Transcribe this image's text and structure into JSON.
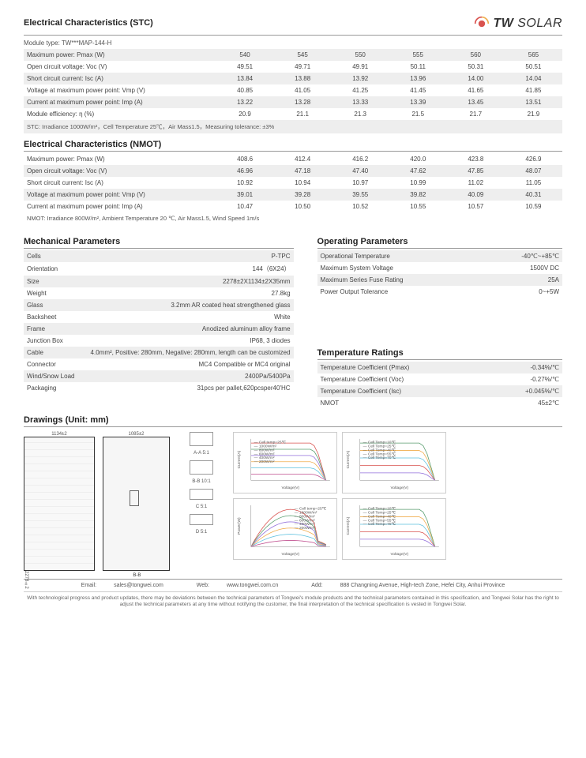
{
  "brand": {
    "tw": "TW",
    "solar": " SOLAR"
  },
  "stc": {
    "title": "Electrical Characteristics (STC)",
    "module_type_label": "Module type: TW***MAP-144-H",
    "rows": [
      {
        "label": "Maximum power: Pmax (W)",
        "vals": [
          "540",
          "545",
          "550",
          "555",
          "560",
          "565"
        ],
        "alt": true
      },
      {
        "label": "Open circuit voltage: Voc (V)",
        "vals": [
          "49.51",
          "49.71",
          "49.91",
          "50.11",
          "50.31",
          "50.51"
        ],
        "alt": false
      },
      {
        "label": "Short circuit current: Isc (A)",
        "vals": [
          "13.84",
          "13.88",
          "13.92",
          "13.96",
          "14.00",
          "14.04"
        ],
        "alt": true
      },
      {
        "label": "Voltage at maximum power point: Vmp (V)",
        "vals": [
          "40.85",
          "41.05",
          "41.25",
          "41.45",
          "41.65",
          "41.85"
        ],
        "alt": false
      },
      {
        "label": "Current at maximum power point: Imp (A)",
        "vals": [
          "13.22",
          "13.28",
          "13.33",
          "13.39",
          "13.45",
          "13.51"
        ],
        "alt": true
      },
      {
        "label": "Module efficiency: η (%)",
        "vals": [
          "20.9",
          "21.1",
          "21.3",
          "21.5",
          "21.7",
          "21.9"
        ],
        "alt": false
      }
    ],
    "note": "STC: Irradiance 1000W/m²，Cell Temperature 25℃，Air Mass1.5，Measuring tolerance:  ±3%"
  },
  "nmot": {
    "title": "Electrical Characteristics (NMOT)",
    "rows": [
      {
        "label": "Maximum power: Pmax (W)",
        "vals": [
          "408.6",
          "412.4",
          "416.2",
          "420.0",
          "423.8",
          "426.9"
        ],
        "alt": false
      },
      {
        "label": "Open circuit voltage: Voc (V)",
        "vals": [
          "46.96",
          "47.18",
          "47.40",
          "47.62",
          "47.85",
          "48.07"
        ],
        "alt": true
      },
      {
        "label": "Short circuit current: Isc (A)",
        "vals": [
          "10.92",
          "10.94",
          "10.97",
          "10.99",
          "11.02",
          "11.05"
        ],
        "alt": false
      },
      {
        "label": "Voltage at maximum power point: Vmp (V)",
        "vals": [
          "39.01",
          "39.28",
          "39.55",
          "39.82",
          "40.09",
          "40.31"
        ],
        "alt": true
      },
      {
        "label": "Current at maximum power point: Imp (A)",
        "vals": [
          "10.47",
          "10.50",
          "10.52",
          "10.55",
          "10.57",
          "10.59"
        ],
        "alt": false
      }
    ],
    "note": "NMOT: Irradiance 800W/m², Ambient Temperature 20 ℃, Air Mass1.5, Wind Speed 1m/s"
  },
  "mechanical": {
    "title": "Mechanical Parameters",
    "rows": [
      {
        "k": "Cells",
        "v": "P-TPC",
        "alt": true
      },
      {
        "k": "Orientation",
        "v": "144（6X24）",
        "alt": false
      },
      {
        "k": "Size",
        "v": "2278±2X1134±2X35mm",
        "alt": true
      },
      {
        "k": "Weight",
        "v": "27.8kg",
        "alt": false
      },
      {
        "k": "Glass",
        "v": "3.2mm AR coated heat strengthened glass",
        "alt": true
      },
      {
        "k": "Backsheet",
        "v": "White",
        "alt": false
      },
      {
        "k": "Frame",
        "v": "Anodized aluminum alloy frame",
        "alt": true
      },
      {
        "k": "Junction Box",
        "v": "IP68, 3 diodes",
        "alt": false
      },
      {
        "k": "Cable",
        "v": "4.0mm², Positive: 280mm, Negative: 280mm, length can be customized",
        "alt": true
      },
      {
        "k": "Connector",
        "v": "MC4 Compatible or MC4 original",
        "alt": false
      },
      {
        "k": "Wind/Snow Load",
        "v": "2400Pa/5400Pa",
        "alt": true
      },
      {
        "k": "Packaging",
        "v": "31pcs per pallet,620pcsper40'HC",
        "alt": false
      }
    ]
  },
  "operating": {
    "title": "Operating Parameters",
    "rows": [
      {
        "k": "Operational Temperature",
        "v": "-40℃~+85℃",
        "alt": true
      },
      {
        "k": "Maximum System Voltage",
        "v": "1500V DC",
        "alt": false
      },
      {
        "k": "Maximum Series Fuse Rating",
        "v": "25A",
        "alt": true
      },
      {
        "k": "Power Output Tolerance",
        "v": "0~+5W",
        "alt": false
      }
    ]
  },
  "temperature": {
    "title": "Temperature Ratings",
    "rows": [
      {
        "k": "Temperature Coefficient (Pmax)",
        "v": "-0.34%/℃",
        "alt": true
      },
      {
        "k": "Temperature Coefficient (Voc)",
        "v": "-0.27%/℃",
        "alt": false
      },
      {
        "k": "Temperature Coefficient (Isc)",
        "v": "+0.045%/℃",
        "alt": true
      },
      {
        "k": "NMOT",
        "v": "45±2℃",
        "alt": false
      }
    ]
  },
  "drawings": {
    "title": "Drawings (Unit: mm)",
    "front_width": "1134±2",
    "back_width": "1085±2",
    "height": "2278±2",
    "details": [
      "A-A 5:1",
      "B-B 10:1",
      "C 5:1",
      "D 5:1",
      "B-B"
    ],
    "chart1": {
      "legend": [
        "Cell temp=25℃",
        "1000W/m²",
        "800W/m²",
        "600W/m²",
        "400W/m²",
        "200W/m²"
      ],
      "colors": [
        "#d9534f",
        "#5a9e6f",
        "#9370db",
        "#f0ad4e",
        "#5bc0de",
        "#c05090"
      ],
      "xlabel": "Voltage(V)",
      "ylabel": "Current(A)",
      "xmax": 60,
      "ymax": 16
    },
    "chart2": {
      "legend": [
        "Cell Temp=10℃",
        "Cell Temp=25℃",
        "Cell Temp=40℃",
        "Cell Temp=55℃",
        "Cell Temp=70℃"
      ],
      "colors": [
        "#5a9e6f",
        "#f0ad4e",
        "#5bc0de",
        "#d9534f",
        "#9370db"
      ],
      "xlabel": "Voltage(V)",
      "ylabel": "Current(A)",
      "xmax": 60,
      "ymax": 14,
      "title": "Incident Irrad.=1000W/m²"
    },
    "chart3": {
      "legend": [
        "Cell temp=25℃",
        "1000W/m²",
        "800W/m²",
        "600W/m²",
        "400W/m²",
        "200W/m²"
      ],
      "colors": [
        "#d9534f",
        "#5a9e6f",
        "#9370db",
        "#f0ad4e",
        "#5bc0de",
        "#c05090"
      ],
      "xlabel": "Voltage(V)",
      "ylabel": "Power(W)",
      "xmax": 50,
      "ymax": 600
    },
    "chart4": {
      "legend": [
        "Cell Temp=10℃",
        "Cell Temp=25℃",
        "Cell Temp=40℃",
        "Cell Temp=55℃",
        "Cell Temp=70℃"
      ],
      "colors": [
        "#5a9e6f",
        "#f0ad4e",
        "#5bc0de",
        "#d9534f",
        "#9370db"
      ],
      "xlabel": "Voltage(V)",
      "ylabel": "Current(A)",
      "xmax": 60,
      "ymax": 14
    }
  },
  "footer": {
    "email_lbl": "Email:",
    "email": "sales@tongwei.com",
    "web_lbl": "Web:",
    "web": "www.tongwei.com.cn",
    "add_lbl": "Add:",
    "add": "888 Changning Avenue, High-tech Zone, Hefei City, Anhui Province",
    "disclaimer": "With technological progress and product updates, there may be deviations between the technical parameters of Tongwei's module products and the technical parameters contained in this specification, and Tongwei Solar has the right to adjust the technical parameters at any time without notifying the customer, the final interpretation of the technical specification is vested in Tongwei Solar."
  }
}
